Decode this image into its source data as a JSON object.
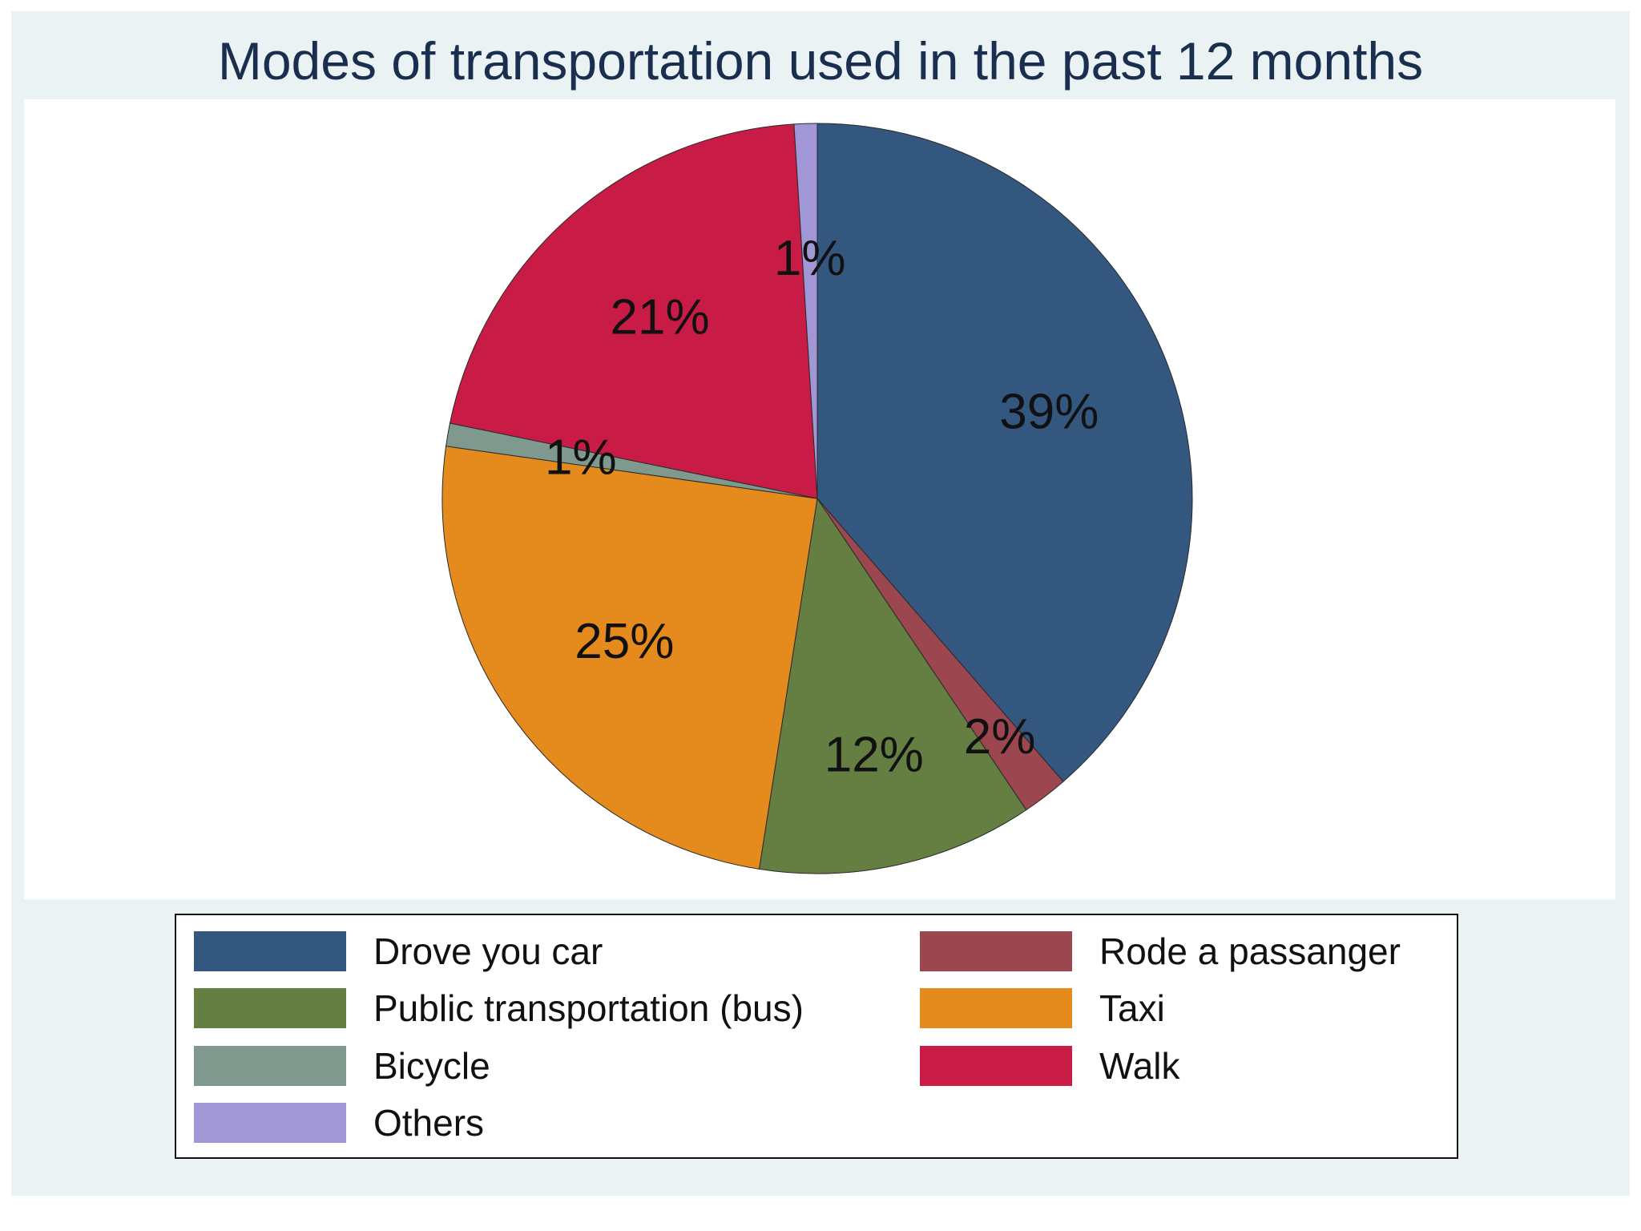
{
  "chart_data": {
    "type": "pie",
    "title": "Modes of transportation used in the past 12 months",
    "legend_placement": "bottom",
    "slices": [
      {
        "name": "Drove you car",
        "value": 39,
        "label": "39%",
        "color": "#33577e"
      },
      {
        "name": "Rode a passanger",
        "value": 2,
        "label": "2%",
        "color": "#9c4650"
      },
      {
        "name": "Public transportation (bus)",
        "value": 12,
        "label": "12%",
        "color": "#657e42"
      },
      {
        "name": "Taxi",
        "value": 25,
        "label": "25%",
        "color": "#e58a1c"
      },
      {
        "name": "Bicycle",
        "value": 1,
        "label": "1%",
        "color": "#7f998f"
      },
      {
        "name": "Walk",
        "value": 21,
        "label": "21%",
        "color": "#c81b46"
      },
      {
        "name": "Others",
        "value": 1,
        "label": "1%",
        "color": "#a197d6"
      }
    ],
    "legend": [
      {
        "name": "Drove you car",
        "color": "#33577e"
      },
      {
        "name": "Rode a passanger",
        "color": "#9c4650"
      },
      {
        "name": "Public transportation (bus)",
        "color": "#657e42"
      },
      {
        "name": "Taxi",
        "color": "#e58a1c"
      },
      {
        "name": "Bicycle",
        "color": "#7f998f"
      },
      {
        "name": "Walk",
        "color": "#c81b46"
      },
      {
        "name": "Others",
        "color": "#a197d6"
      }
    ]
  }
}
